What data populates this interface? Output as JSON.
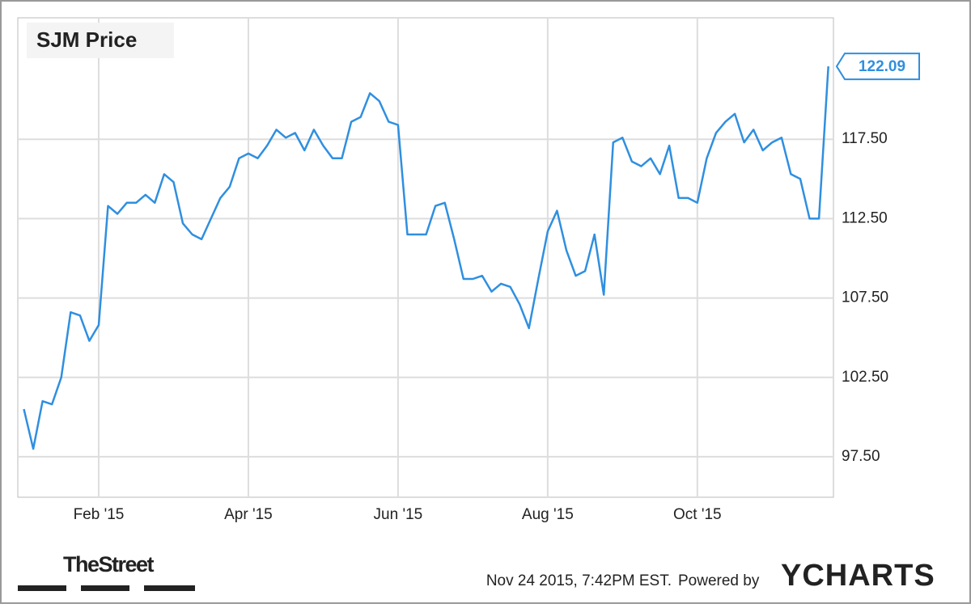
{
  "chart_data": {
    "type": "line",
    "title": "SJM Price",
    "categories": [
      null,
      null,
      null,
      null,
      null,
      null,
      null,
      null,
      "Feb '15",
      null,
      null,
      null,
      null,
      null,
      null,
      null,
      null,
      null,
      null,
      null,
      null,
      null,
      null,
      null,
      "Apr '15",
      null,
      null,
      null,
      null,
      null,
      null,
      null,
      null,
      null,
      null,
      null,
      null,
      null,
      null,
      null,
      "Jun '15",
      null,
      null,
      null,
      null,
      null,
      null,
      null,
      null,
      null,
      null,
      null,
      null,
      null,
      null,
      null,
      "Aug '15",
      null,
      null,
      null,
      null,
      null,
      null,
      null,
      null,
      null,
      null,
      null,
      null,
      null,
      null,
      null,
      "Oct '15",
      null,
      null,
      null,
      null,
      null,
      null,
      null,
      null,
      null,
      null,
      null,
      null,
      null,
      null
    ],
    "series": [
      {
        "name": "SJM Price",
        "color": "#2f8fe0",
        "values": [
          100.5,
          98.0,
          101.0,
          100.8,
          102.5,
          106.6,
          106.4,
          104.8,
          105.8,
          113.3,
          112.8,
          113.5,
          113.5,
          114.0,
          113.5,
          115.3,
          114.8,
          112.2,
          111.5,
          111.2,
          112.5,
          113.8,
          114.5,
          116.3,
          116.6,
          116.3,
          117.1,
          118.1,
          117.6,
          117.9,
          116.8,
          118.1,
          117.1,
          116.3,
          116.3,
          118.6,
          118.9,
          120.4,
          119.9,
          118.6,
          118.4,
          111.5,
          111.5,
          111.5,
          113.3,
          113.5,
          111.2,
          108.7,
          108.7,
          108.9,
          107.9,
          108.4,
          108.2,
          107.1,
          105.6,
          108.7,
          111.7,
          113.0,
          110.5,
          108.9,
          109.2,
          111.5,
          107.7,
          117.3,
          117.6,
          116.1,
          115.8,
          116.3,
          115.3,
          117.1,
          113.8,
          113.8,
          113.5,
          116.3,
          117.9,
          118.6,
          119.1,
          117.3,
          118.1,
          116.8,
          117.3,
          117.6,
          115.3,
          115.0,
          112.5,
          112.5,
          122.09
        ]
      }
    ],
    "ylim": [
      94.95,
      125.15
    ],
    "yticks": [
      {
        "value": 97.5,
        "label": "97.50"
      },
      {
        "value": 102.5,
        "label": "102.50"
      },
      {
        "value": 107.5,
        "label": "107.50"
      },
      {
        "value": 112.5,
        "label": "112.50"
      },
      {
        "value": 117.5,
        "label": "117.50"
      }
    ],
    "grid": true,
    "publisher": "TheStreet",
    "timestamp": "Nov 24 2015, 7:42PM EST.",
    "powered_by": "Powered by",
    "brand": "YCHARTS"
  }
}
